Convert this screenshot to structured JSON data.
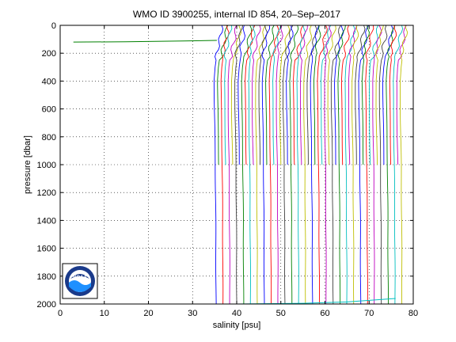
{
  "chart_data": {
    "type": "line",
    "title": "WMO ID 3900255, internal ID 854, 20–Sep–2017",
    "xlabel": "salinity [psu]",
    "ylabel": "pressure [dbar]",
    "xlim": [
      0,
      80
    ],
    "ylim": [
      2000,
      0
    ],
    "y_reversed": true,
    "grid": true,
    "grid_style": "dotted",
    "x_ticks": [
      0,
      10,
      20,
      30,
      40,
      50,
      60,
      70,
      80
    ],
    "y_ticks": [
      0,
      200,
      400,
      600,
      800,
      1000,
      1200,
      1400,
      1600,
      1800,
      2000
    ],
    "series_colors": [
      "#0000ff",
      "#008000",
      "#ff0000",
      "#00bfbf",
      "#bf00bf",
      "#bfbf00",
      "#404040"
    ],
    "profile_description": "Waterfall of consecutive salinity profiles, each offset by a fixed step in salinity",
    "profiles": {
      "start_offset": 35.2,
      "step": 0.78,
      "count": 55,
      "deep_profile_every": 2,
      "shallow_profile_bottom": 1000,
      "deep_profile_bottom": 2000,
      "shape_pressure": [
        0,
        50,
        100,
        150,
        200,
        300,
        400,
        600,
        800,
        1000,
        1200,
        1400,
        1600,
        1800,
        2000
      ],
      "shape_salinity_delta": [
        1.4,
        1.3,
        1.0,
        0.6,
        0.3,
        -0.1,
        -0.3,
        -0.25,
        -0.15,
        -0.05,
        0.0,
        0.05,
        0.08,
        0.1,
        0.12
      ]
    },
    "anomaly_series": [
      {
        "x": [
          3,
          15,
          28,
          35.5
        ],
        "y": [
          120,
          118,
          112,
          108
        ],
        "color": "#008000"
      },
      {
        "x": [
          40,
          55,
          65,
          76
        ],
        "y": [
          2000,
          1995,
          1985,
          1960
        ],
        "color": "#00bfbf"
      }
    ]
  },
  "logo": {
    "text": "NOAA",
    "colors": {
      "outer": "#1a3a8a",
      "inner": "#1e90ff",
      "bird": "#ffffff"
    }
  }
}
